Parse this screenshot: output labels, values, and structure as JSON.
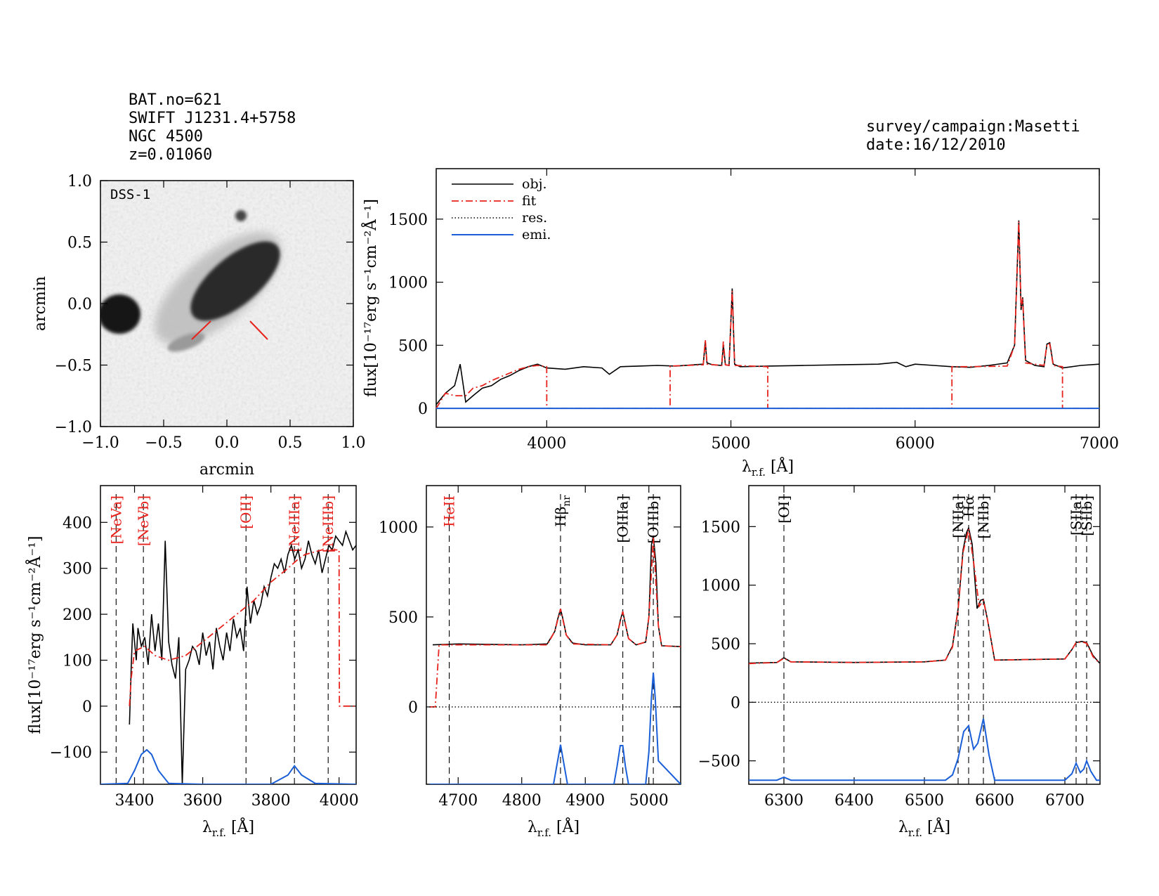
{
  "header": {
    "left": [
      "BAT.no=621",
      "SWIFT J1231.4+5758",
      "NGC 4500",
      "z=0.01060"
    ],
    "right": [
      "survey/campaign:Masetti",
      "date:16/12/2010"
    ]
  },
  "colors": {
    "obj": "#000000",
    "fit": "#e8231d",
    "res": "#000000",
    "emi": "#1a5fd8"
  },
  "chart_data": [
    {
      "type": "image",
      "panel": "dss",
      "label": "DSS-1",
      "xlabel": "arcmin",
      "ylabel": "arcmin",
      "xlim": [
        -1.0,
        1.0
      ],
      "ylim": [
        -1.0,
        1.0
      ],
      "xticks": [
        "−1.0",
        "−0.5",
        "0.0",
        "0.5",
        "1.0"
      ],
      "yticks": [
        "−1.0",
        "−0.5",
        "0.0",
        "0.5",
        "1.0"
      ]
    },
    {
      "type": "line",
      "panel": "full",
      "xlabel": "λ",
      "xlabel_sub": "r.f.",
      "xlabel_unit": "[Å]",
      "ylabel": "flux[10⁻¹⁷erg s⁻¹cm⁻²Å⁻¹]",
      "xlim": [
        3400,
        7000
      ],
      "ylim": [
        -150,
        1900
      ],
      "xticks": [
        4000,
        5000,
        6000,
        7000
      ],
      "yticks": [
        0,
        500,
        1000,
        1500
      ],
      "legend": [
        "obj.",
        "fit",
        "res.",
        "emi."
      ],
      "legend_position": "top-left",
      "series": [
        {
          "name": "obj.",
          "x": [
            3400,
            3450,
            3500,
            3530,
            3560,
            3600,
            3650,
            3700,
            3750,
            3800,
            3850,
            3900,
            3950,
            4000,
            4100,
            4200,
            4300,
            4340,
            4400,
            4500,
            4600,
            4700,
            4800,
            4850,
            4861,
            4870,
            4900,
            4950,
            4959,
            4970,
            4990,
            5007,
            5020,
            5050,
            5200,
            5400,
            5600,
            5800,
            5900,
            5950,
            6000,
            6100,
            6200,
            6300,
            6400,
            6500,
            6540,
            6563,
            6575,
            6584,
            6600,
            6650,
            6700,
            6716,
            6731,
            6750,
            6800,
            6900,
            7000
          ],
          "y": [
            30,
            120,
            180,
            350,
            50,
            100,
            160,
            180,
            230,
            260,
            300,
            330,
            350,
            320,
            310,
            330,
            320,
            270,
            330,
            335,
            340,
            335,
            345,
            350,
            530,
            360,
            345,
            340,
            500,
            345,
            340,
            950,
            350,
            330,
            335,
            340,
            345,
            350,
            365,
            330,
            350,
            340,
            330,
            325,
            340,
            360,
            500,
            1490,
            780,
            880,
            380,
            340,
            330,
            510,
            520,
            350,
            320,
            340,
            350
          ]
        },
        {
          "name": "fit",
          "x": [
            3400,
            3450,
            3500,
            3560,
            3600,
            3650,
            3700,
            3750,
            3800,
            3850,
            3900,
            3950,
            4000,
            4000.1,
            4670,
            4670.1,
            4850,
            4861,
            4870,
            4950,
            4959,
            4970,
            4990,
            5007,
            5020,
            5200,
            5200.1,
            6200,
            6200.1,
            6300,
            6500,
            6540,
            6563,
            6575,
            6584,
            6600,
            6700,
            6716,
            6731,
            6750,
            6800,
            6800.1,
            7000
          ],
          "y": [
            0,
            120,
            100,
            100,
            160,
            180,
            220,
            250,
            280,
            310,
            330,
            340,
            330,
            0,
            0,
            335,
            345,
            545,
            350,
            340,
            530,
            345,
            340,
            930,
            340,
            330,
            0,
            0,
            330,
            330,
            335,
            500,
            1480,
            800,
            870,
            360,
            340,
            510,
            510,
            340,
            330,
            0,
            0
          ]
        },
        {
          "name": "res.",
          "x": [
            3400,
            7000
          ],
          "y": [
            0,
            0
          ]
        },
        {
          "name": "emi.",
          "x": [
            3400,
            7000
          ],
          "y": [
            0,
            0
          ]
        }
      ]
    },
    {
      "type": "line",
      "panel": "zoom-blue",
      "xlabel": "λ",
      "xlabel_sub": "r.f.",
      "xlabel_unit": "[Å]",
      "ylabel": "flux[10⁻¹⁷erg s⁻¹cm⁻²Å⁻¹]",
      "xlim": [
        3300,
        4050
      ],
      "ylim": [
        -170,
        480
      ],
      "xticks": [
        3400,
        3600,
        3800,
        4000
      ],
      "yticks": [
        -100,
        0,
        100,
        200,
        300,
        400
      ],
      "lines": [
        {
          "label": "[NeVa]",
          "x": 3346,
          "color": "red"
        },
        {
          "label": "[NeVb]",
          "x": 3426,
          "color": "red"
        },
        {
          "label": "[OII]",
          "x": 3727,
          "color": "red"
        },
        {
          "label": "[NeIIIa]",
          "x": 3869,
          "color": "red"
        },
        {
          "label": "[NeIIIb]",
          "x": 3968,
          "color": "red"
        }
      ],
      "series": [
        {
          "name": "obj.",
          "x": [
            3385,
            3390,
            3395,
            3400,
            3405,
            3410,
            3420,
            3430,
            3440,
            3450,
            3460,
            3470,
            3480,
            3490,
            3500,
            3510,
            3520,
            3530,
            3540,
            3550,
            3560,
            3570,
            3580,
            3590,
            3600,
            3610,
            3620,
            3630,
            3640,
            3650,
            3660,
            3670,
            3680,
            3690,
            3700,
            3710,
            3720,
            3730,
            3740,
            3750,
            3760,
            3770,
            3780,
            3790,
            3800,
            3810,
            3820,
            3830,
            3840,
            3850,
            3860,
            3870,
            3880,
            3890,
            3900,
            3910,
            3920,
            3930,
            3940,
            3950,
            3960,
            3970,
            3980,
            3990,
            4000,
            4010,
            4020,
            4030,
            4040,
            4050
          ],
          "y": [
            -40,
            80,
            180,
            140,
            100,
            170,
            130,
            150,
            90,
            200,
            120,
            180,
            100,
            360,
            140,
            90,
            60,
            150,
            -170,
            80,
            100,
            130,
            120,
            90,
            160,
            110,
            140,
            80,
            170,
            130,
            100,
            160,
            120,
            190,
            150,
            170,
            120,
            260,
            180,
            230,
            200,
            220,
            260,
            240,
            280,
            310,
            300,
            320,
            290,
            330,
            350,
            320,
            340,
            300,
            320,
            360,
            330,
            310,
            340,
            290,
            320,
            350,
            340,
            370,
            360,
            350,
            380,
            360,
            340,
            350
          ]
        },
        {
          "name": "fit",
          "x": [
            3385,
            3390,
            3400,
            3430,
            3460,
            3500,
            3550,
            3600,
            3650,
            3700,
            3750,
            3800,
            3850,
            3880,
            3900,
            3950,
            4000,
            4001,
            4050
          ],
          "y": [
            0,
            60,
            120,
            130,
            110,
            100,
            110,
            140,
            170,
            200,
            230,
            270,
            300,
            320,
            330,
            340,
            340,
            0,
            0
          ]
        },
        {
          "name": "emi.",
          "x": [
            3300,
            3380,
            3400,
            3420,
            3436,
            3450,
            3470,
            3500,
            3600,
            3800,
            3850,
            3869,
            3890,
            3930,
            4050
          ],
          "y": [
            -170,
            -168,
            -140,
            -105,
            -95,
            -105,
            -140,
            -168,
            -170,
            -170,
            -150,
            -130,
            -150,
            -168,
            -170
          ]
        }
      ]
    },
    {
      "type": "line",
      "panel": "zoom-green",
      "xlabel": "λ",
      "xlabel_sub": "r.f.",
      "xlabel_unit": "[Å]",
      "xlim": [
        4650,
        5050
      ],
      "ylim": [
        -430,
        1230
      ],
      "xticks": [
        4700,
        4800,
        4900,
        5000
      ],
      "yticks": [
        0,
        500,
        1000
      ],
      "lines": [
        {
          "label": "HeII",
          "x": 4686,
          "color": "red"
        },
        {
          "label": "Hβ",
          "sub": "nr",
          "x": 4861,
          "color": "black"
        },
        {
          "label": "[OIIIa]",
          "x": 4959,
          "color": "black"
        },
        {
          "label": "[OIIIb]",
          "x": 5007,
          "color": "black"
        }
      ],
      "series": [
        {
          "name": "obj.",
          "x": [
            4660,
            4700,
            4800,
            4840,
            4852,
            4856,
            4861,
            4866,
            4870,
            4880,
            4900,
            4940,
            4950,
            4955,
            4959,
            4963,
            4968,
            4980,
            4995,
            5000,
            5004,
            5007,
            5011,
            5015,
            5020,
            5050
          ],
          "y": [
            345,
            350,
            345,
            350,
            420,
            480,
            545,
            470,
            400,
            355,
            345,
            345,
            400,
            480,
            530,
            460,
            380,
            345,
            360,
            500,
            900,
            950,
            800,
            450,
            340,
            335
          ]
        },
        {
          "name": "fit",
          "x": [
            4655,
            4664,
            4670,
            4700,
            4800,
            4840,
            4852,
            4861,
            4870,
            4880,
            4940,
            4950,
            4959,
            4968,
            4980,
            4995,
            5000,
            5007,
            5015,
            5020,
            5050
          ],
          "y": [
            0,
            0,
            345,
            345,
            345,
            345,
            420,
            545,
            400,
            350,
            345,
            400,
            530,
            380,
            345,
            360,
            500,
            940,
            450,
            340,
            335
          ]
        },
        {
          "name": "res.",
          "x": [
            4655,
            5050
          ],
          "y": [
            0,
            0
          ]
        },
        {
          "name": "emi.",
          "x": [
            4655,
            4850,
            4855,
            4861,
            4867,
            4872,
            4945,
            4950,
            4955,
            4959,
            4963,
            4968,
            4995,
            5000,
            5004,
            5007,
            5010,
            5015,
            5050
          ],
          "y": [
            -430,
            -430,
            -330,
            -210,
            -330,
            -430,
            -430,
            -330,
            -215,
            -215,
            -330,
            -430,
            -430,
            -250,
            50,
            190,
            50,
            -300,
            -430
          ]
        }
      ]
    },
    {
      "type": "line",
      "panel": "zoom-red",
      "xlabel": "λ",
      "xlabel_sub": "r.f.",
      "xlabel_unit": "[Å]",
      "xlim": [
        6250,
        6750
      ],
      "ylim": [
        -700,
        1850
      ],
      "xticks": [
        6300,
        6400,
        6500,
        6600,
        6700
      ],
      "yticks": [
        -500,
        0,
        500,
        1000,
        1500
      ],
      "lines": [
        {
          "label": "[OI]",
          "x": 6300,
          "color": "black"
        },
        {
          "label": "[NIIa]",
          "x": 6548,
          "color": "black"
        },
        {
          "label": "Hα",
          "x": 6563,
          "color": "black"
        },
        {
          "label": "[NIIb]",
          "x": 6584,
          "color": "black"
        },
        {
          "label": "[SIIa]",
          "x": 6716,
          "color": "black"
        },
        {
          "label": "[SIIb]",
          "x": 6731,
          "color": "black"
        }
      ],
      "series": [
        {
          "name": "obj.",
          "x": [
            6250,
            6290,
            6300,
            6310,
            6400,
            6500,
            6530,
            6540,
            6548,
            6555,
            6560,
            6563,
            6568,
            6575,
            6580,
            6584,
            6590,
            6600,
            6700,
            6710,
            6716,
            6724,
            6731,
            6740,
            6750
          ],
          "y": [
            335,
            340,
            380,
            345,
            340,
            345,
            360,
            480,
            800,
            1300,
            1450,
            1490,
            1350,
            800,
            870,
            880,
            700,
            360,
            370,
            450,
            510,
            520,
            510,
            400,
            330
          ]
        },
        {
          "name": "fit",
          "x": [
            6250,
            6290,
            6300,
            6310,
            6400,
            6500,
            6530,
            6540,
            6548,
            6555,
            6563,
            6570,
            6578,
            6584,
            6590,
            6600,
            6700,
            6710,
            6716,
            6724,
            6731,
            6740,
            6750
          ],
          "y": [
            330,
            340,
            375,
            345,
            340,
            345,
            360,
            470,
            790,
            1280,
            1480,
            1200,
            820,
            870,
            700,
            360,
            370,
            450,
            510,
            515,
            505,
            390,
            330
          ]
        },
        {
          "name": "res.",
          "x": [
            6250,
            6750
          ],
          "y": [
            0,
            0
          ]
        },
        {
          "name": "emi.",
          "x": [
            6250,
            6290,
            6300,
            6310,
            6530,
            6540,
            6548,
            6556,
            6563,
            6570,
            6576,
            6584,
            6592,
            6600,
            6700,
            6710,
            6716,
            6722,
            6727,
            6731,
            6737,
            6745,
            6750
          ],
          "y": [
            -665,
            -665,
            -640,
            -665,
            -665,
            -620,
            -480,
            -250,
            -200,
            -400,
            -350,
            -140,
            -450,
            -665,
            -665,
            -610,
            -520,
            -600,
            -570,
            -500,
            -590,
            -665,
            -665
          ]
        }
      ]
    }
  ]
}
